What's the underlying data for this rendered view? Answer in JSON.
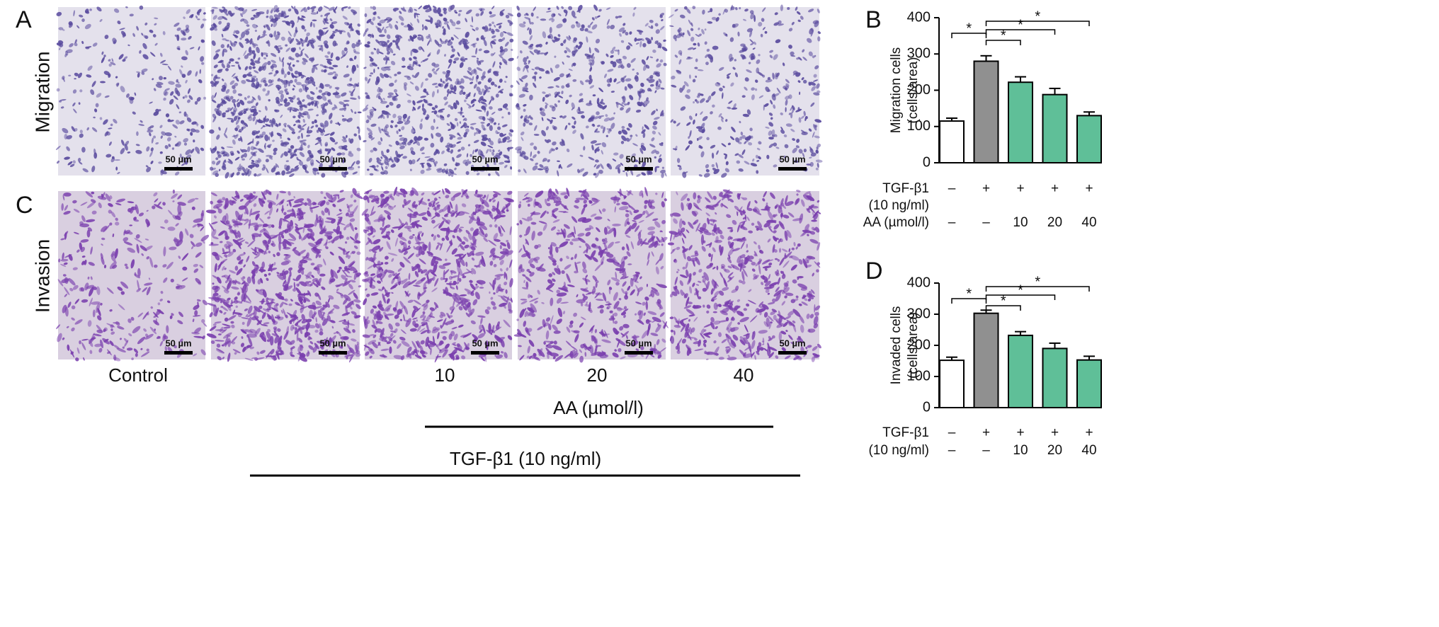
{
  "panels": {
    "a": "A",
    "b": "B",
    "c": "C",
    "d": "D"
  },
  "micrographs": {
    "row_labels": [
      "Migration",
      "Invasion"
    ],
    "scale_bar": "50 µm",
    "column_labels": [
      "Control",
      "10",
      "20",
      "40"
    ],
    "aa_label": "AA (µmol/l)",
    "tgf_label": "TGF-β1 (10 ng/ml)"
  },
  "chart_data": [
    {
      "type": "bar",
      "y_label": [
        "Migration cells",
        "(cells/area)"
      ],
      "values": [
        115,
        280,
        222,
        188,
        130
      ],
      "errors": [
        8,
        15,
        15,
        17,
        10
      ],
      "colors": [
        "#ffffff",
        "#909090",
        "#5fbf98",
        "#5fbf98",
        "#5fbf98"
      ],
      "ylim": [
        0,
        400
      ],
      "yticks": [
        0,
        100,
        200,
        300,
        400
      ],
      "annotations": [
        "*",
        "*",
        "*",
        "*"
      ],
      "treatment_rows": [
        {
          "label": [
            "TGF-β1",
            "(10 ng/ml)"
          ],
          "entries": [
            "–",
            "+",
            "+",
            "+",
            "+"
          ]
        },
        {
          "label": [
            "AA (µmol/l)"
          ],
          "entries": [
            "–",
            "–",
            "10",
            "20",
            "40"
          ]
        }
      ]
    },
    {
      "type": "bar",
      "y_label": [
        "Invaded cells",
        "(cells/area)"
      ],
      "values": [
        152,
        303,
        232,
        190,
        153
      ],
      "errors": [
        10,
        10,
        12,
        17,
        12
      ],
      "colors": [
        "#ffffff",
        "#909090",
        "#5fbf98",
        "#5fbf98",
        "#5fbf98"
      ],
      "ylim": [
        0,
        400
      ],
      "yticks": [
        0,
        100,
        200,
        300,
        400
      ],
      "annotations": [
        "*",
        "*",
        "*",
        "*"
      ],
      "treatment_rows": [
        {
          "label": [
            "TGF-β1"
          ],
          "entries": [
            "–",
            "+",
            "+",
            "+",
            "+"
          ]
        },
        {
          "label": [
            "(10 ng/ml)"
          ],
          "entries": [
            "–",
            "–",
            "10",
            "20",
            "40"
          ]
        }
      ]
    }
  ]
}
